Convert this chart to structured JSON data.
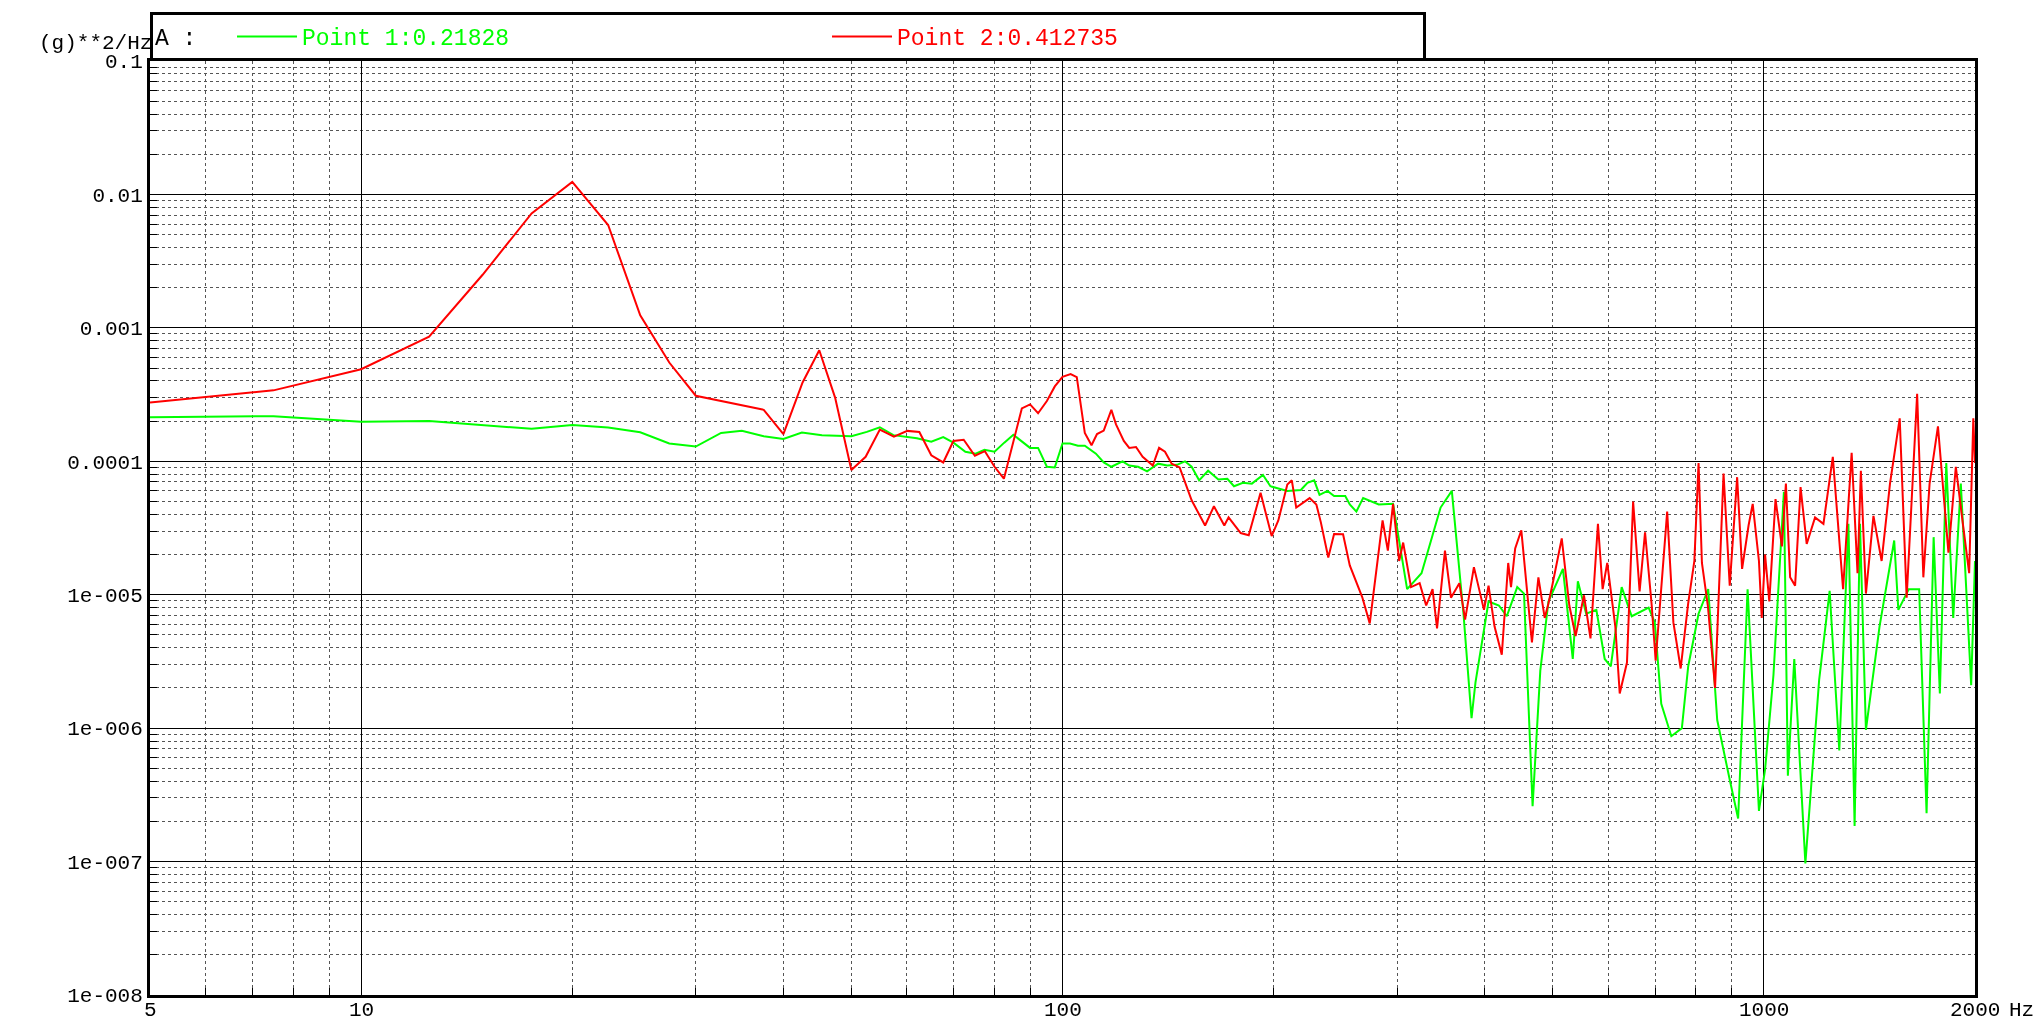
{
  "chart_data": {
    "type": "line",
    "ylabel": "(g)**2/Hz",
    "legend_title": "A :",
    "legend": "top",
    "grid": true,
    "log": "xy",
    "xlim": [
      5,
      2000
    ],
    "ylim": [
      1e-08,
      0.1
    ],
    "xlabel": "Hz",
    "xticks": [
      5,
      10,
      100,
      1000,
      2000
    ],
    "yticks": [
      {
        "value": 1e-08,
        "label": "1e-008"
      },
      {
        "value": 1e-07,
        "label": "1e-007"
      },
      {
        "value": 1e-06,
        "label": "1e-006"
      },
      {
        "value": 1e-05,
        "label": "1e-005"
      },
      0.0001,
      0.001,
      0.01,
      0.1
    ],
    "series": [
      {
        "name": "Point 1:0.21828",
        "color": "#00ff00",
        "x": [
          5,
          7.5,
          10,
          12.5,
          17.5,
          20,
          22.5,
          25,
          27.5,
          30,
          32.6,
          34.9,
          37.5,
          40,
          42.5,
          45.4,
          50,
          52.6,
          54.9,
          57.4,
          62,
          65,
          67.6,
          69.9,
          72.7,
          75.2,
          77.4,
          80,
          82.6,
          85.1,
          89.9,
          92.3,
          95,
          97.5,
          100,
          102.5,
          105.2,
          107.6,
          111.6,
          114.5,
          117.4,
          121.8,
          124.5,
          128.2,
          132,
          136.9,
          141,
          145.6,
          149.5,
          152.8,
          156.6,
          161.3,
          166.8,
          171.8,
          175.6,
          180.8,
          186.2,
          193.1,
          197.9,
          209.2,
          218.7,
          223.5,
          228.5,
          232.5,
          238.7,
          243.9,
          253,
          256.8,
          262.4,
          268.3,
          282.4,
          296,
          310,
          325,
          346,
          359,
          373,
          383,
          388,
          405,
          419,
          430,
          445,
          455,
          468,
          480,
          493,
          517,
          534,
          543,
          558,
          577,
          593,
          605,
          627,
          648,
          685,
          699,
          714,
          738,
          764,
          780,
          807,
          833,
          858,
          894,
          919,
          948,
          984,
          1004,
          1032,
          1068,
          1082,
          1105,
          1146,
          1199,
          1241,
          1281,
          1320,
          1347,
          1371,
          1398,
          1462,
          1534,
          1555,
          1609,
          1665,
          1706,
          1746,
          1782,
          1820,
          1862,
          1909,
          1975,
          2000
        ],
        "values": [
          0.000214,
          0.000218,
          0.000198,
          0.0002,
          0.000175,
          0.000187,
          0.000179,
          0.000165,
          0.000136,
          0.000129,
          0.000163,
          0.000169,
          0.000154,
          0.000147,
          0.000164,
          0.000157,
          0.000154,
          0.000166,
          0.00018,
          0.000157,
          0.000149,
          0.00014,
          0.000152,
          0.000138,
          0.000118,
          0.000114,
          0.000122,
          0.000118,
          0.000138,
          0.000158,
          0.000126,
          0.000126,
          9.1e-05,
          9e-05,
          0.000136,
          0.000136,
          0.000131,
          0.000131,
          0.000114,
          9.8e-05,
          9.1e-05,
          0.0001,
          9.3e-05,
          9.1e-05,
          8.4e-05,
          9.6e-05,
          9.3e-05,
          9.4e-05,
          0.0001,
          9.1e-05,
          7.2e-05,
          8.5e-05,
          7.3e-05,
          7.4e-05,
          6.5e-05,
          6.9e-05,
          6.8e-05,
          7.9e-05,
          6.5e-05,
          6e-05,
          6.1e-05,
          6.9e-05,
          7.2e-05,
          5.6e-05,
          6e-05,
          5.5e-05,
          5.5e-05,
          4.75e-05,
          4.2e-05,
          5.3e-05,
          4.75e-05,
          4.8e-05,
          1.1e-05,
          1.45e-05,
          4.5e-05,
          6e-05,
          7.2e-06,
          1.19e-06,
          2.2e-06,
          8.9e-06,
          8.3e-06,
          6.9e-06,
          1.14e-05,
          1.02e-05,
          2.6e-07,
          2.7e-06,
          8.9e-06,
          1.56e-05,
          3.3e-06,
          1.26e-05,
          7.2e-06,
          7.7e-06,
          3.3e-06,
          2.9e-06,
          1.14e-05,
          6.9e-06,
          8e-06,
          6.2e-06,
          1.52e-06,
          8.7e-07,
          1e-06,
          2.9e-06,
          7.2e-06,
          1.1e-05,
          1.15e-06,
          4.1e-07,
          2.1e-07,
          1.1e-05,
          2.4e-07,
          4.9e-07,
          2.5e-06,
          5.9e-05,
          4.4e-07,
          3.3e-06,
          9.7e-08,
          2.3e-06,
          1.07e-05,
          6.8e-07,
          3.4e-05,
          1.85e-07,
          3.4e-05,
          9.7e-07,
          5.8e-06,
          2.55e-05,
          7.7e-06,
          1.1e-05,
          1.1e-05,
          2.3e-07,
          2.7e-05,
          1.82e-06,
          9.7e-05,
          6.7e-06,
          6.8e-05,
          2.1e-06,
          1.79e-05
        ]
      },
      {
        "name": "Point 2:0.412735",
        "color": "#ff0000",
        "x": [
          5,
          7.5,
          10,
          12.5,
          14.9,
          17.5,
          20,
          22.5,
          25,
          27.5,
          30,
          37.5,
          40,
          42.6,
          45,
          47.4,
          50,
          52.4,
          54.9,
          57.5,
          60.1,
          62.5,
          65,
          67.6,
          69.9,
          72.3,
          75,
          77.5,
          80,
          82.5,
          87.5,
          89.9,
          92.3,
          95,
          97.5,
          100,
          102.7,
          104.8,
          107.6,
          110,
          112,
          114.5,
          117.4,
          119.2,
          122.3,
          124.5,
          127.3,
          130.1,
          134.5,
          137.3,
          140,
          143.1,
          146.9,
          152.8,
          159.7,
          164.4,
          170.1,
          172.5,
          179.5,
          184.3,
          191.6,
          198.7,
          203.1,
          209.2,
          212.3,
          215.4,
          225.1,
          230.1,
          233.5,
          239.3,
          243.9,
          251.2,
          256.8,
          267.5,
          274.2,
          286,
          291,
          296,
          302,
          306,
          314,
          323,
          330,
          337,
          342,
          351,
          358,
          368,
          375,
          386,
          399,
          405,
          413,
          423,
          432,
          436,
          442,
          451,
          467,
          477,
          487,
          493,
          500,
          515,
          528,
          539,
          554,
          566,
          580,
          589,
          598,
          614,
          623,
          638,
          651,
          665,
          677,
          692,
          701,
          728,
          743,
          761,
          780,
          796,
          807,
          816,
          832,
          852,
          876,
          894,
          916,
          931,
          951,
          964,
          984,
          993,
          1004,
          1018,
          1039,
          1061,
          1075,
          1090,
          1108,
          1128,
          1151,
          1183,
          1216,
          1254,
          1297,
          1334,
          1360,
          1375,
          1398,
          1433,
          1472,
          1513,
          1562,
          1598,
          1654,
          1688,
          1723,
          1771,
          1833,
          1878,
          1922,
          1962,
          1989,
          2000
        ],
        "values": [
          0.000276,
          0.00034,
          0.00049,
          0.00086,
          0.0025,
          0.0072,
          0.0124,
          0.0059,
          0.00124,
          0.00055,
          0.00031,
          0.000243,
          0.00016,
          0.00039,
          0.00068,
          0.0003,
          8.6e-05,
          0.000108,
          0.000173,
          0.000153,
          0.000169,
          0.000166,
          0.000111,
          9.8e-05,
          0.000142,
          0.000145,
          0.00011,
          0.000119,
          9.1e-05,
          7.4e-05,
          0.000249,
          0.000267,
          0.000229,
          0.000283,
          0.000364,
          0.00043,
          0.00045,
          0.000427,
          0.000163,
          0.000132,
          0.00016,
          0.00017,
          0.000243,
          0.000189,
          0.000142,
          0.000126,
          0.000128,
          0.000108,
          9.3e-05,
          0.000126,
          0.000118,
          9.6e-05,
          9e-05,
          5.1e-05,
          3.3e-05,
          4.6e-05,
          3.3e-05,
          3.8e-05,
          2.9e-05,
          2.79e-05,
          5.8e-05,
          2.75e-05,
          3.6e-05,
          6.7e-05,
          7.2e-05,
          4.5e-05,
          5.3e-05,
          4.75e-05,
          3.5e-05,
          1.9e-05,
          2.85e-05,
          2.84e-05,
          1.66e-05,
          9.6e-06,
          6.1e-06,
          3.6e-05,
          2.14e-05,
          4.8e-05,
          1.79e-05,
          2.46e-05,
          1.14e-05,
          1.22e-05,
          8.3e-06,
          1.1e-05,
          5.6e-06,
          2.14e-05,
          9.5e-06,
          1.22e-05,
          6.5e-06,
          1.61e-05,
          7.7e-06,
          1.17e-05,
          5.8e-06,
          3.55e-06,
          1.73e-05,
          1.14e-05,
          2.22e-05,
          3.04e-05,
          4.4e-06,
          1.35e-05,
          6.7e-06,
          8.6e-06,
          1.22e-05,
          2.64e-05,
          8.3e-06,
          4.9e-06,
          9.9e-06,
          4.7e-06,
          3.4e-05,
          1.1e-05,
          1.73e-05,
          5.8e-06,
          1.82e-06,
          3.1e-06,
          5e-05,
          1.06e-05,
          2.94e-05,
          8.3e-06,
          3.2e-06,
          4.2e-05,
          6.2e-06,
          2.8e-06,
          8.6e-06,
          1.79e-05,
          9.7e-05,
          1.73e-05,
          8.3e-06,
          2e-06,
          8.1e-05,
          1.17e-05,
          7.6e-05,
          1.56e-05,
          3.3e-05,
          4.8e-05,
          1.79e-05,
          6.7e-06,
          2e-05,
          8.9e-06,
          5.2e-05,
          2.3e-05,
          6.8e-05,
          1.35e-05,
          1.17e-05,
          6.4e-05,
          2.4e-05,
          3.8e-05,
          3.4e-05,
          0.000108,
          1.1e-05,
          0.000116,
          1.45e-05,
          8.5e-05,
          1.02e-05,
          3.9e-05,
          1.79e-05,
          6.8e-05,
          0.00021,
          9.5e-06,
          0.00032,
          1.35e-05,
          6.8e-05,
          0.000183,
          2.07e-05,
          9.1e-05,
          3.4e-05,
          1.45e-05,
          0.00021,
          9.7e-05
        ]
      }
    ]
  }
}
